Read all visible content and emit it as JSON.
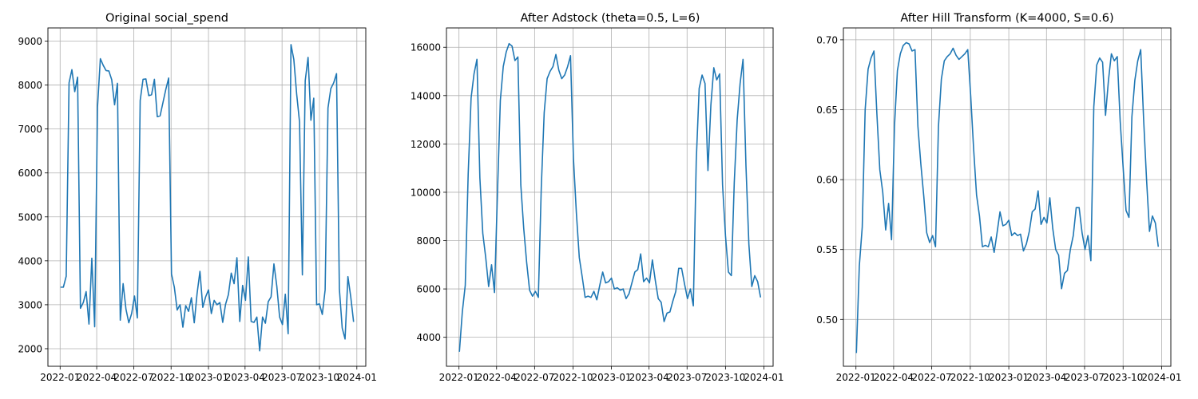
{
  "chart_data": [
    {
      "type": "line",
      "title": "Original social_spend",
      "x_ticks": [
        "2022-01",
        "2022-04",
        "2022-07",
        "2022-10",
        "2023-01",
        "2023-04",
        "2023-07",
        "2023-10",
        "2024-01"
      ],
      "y_ticks": [
        "2000",
        "3000",
        "4000",
        "5000",
        "6000",
        "7000",
        "8000",
        "9000"
      ],
      "ylim": [
        1600,
        9300
      ],
      "grid": true,
      "color": "#1f77b4",
      "series": [
        {
          "x": [
            "2022-01-02",
            "2022-01-09",
            "2022-01-16",
            "2022-01-23",
            "2022-01-30",
            "2022-02-06",
            "2022-02-13",
            "2022-02-20",
            "2022-02-27",
            "2022-03-06",
            "2022-03-13",
            "2022-03-20",
            "2022-03-27",
            "2022-04-03",
            "2022-04-10",
            "2022-04-17",
            "2022-04-24",
            "2022-05-01",
            "2022-05-08",
            "2022-05-15",
            "2022-05-22",
            "2022-05-29",
            "2022-06-05",
            "2022-06-12",
            "2022-06-19",
            "2022-06-26",
            "2022-07-03",
            "2022-07-10",
            "2022-07-17",
            "2022-07-24",
            "2022-07-31",
            "2022-08-07",
            "2022-08-14",
            "2022-08-21",
            "2022-08-28",
            "2022-09-04",
            "2022-09-11",
            "2022-09-18",
            "2022-09-25",
            "2022-10-02",
            "2022-10-09",
            "2022-10-16",
            "2022-10-23",
            "2022-10-30",
            "2022-11-06",
            "2022-11-13",
            "2022-11-20",
            "2022-11-27",
            "2022-12-04",
            "2022-12-11",
            "2022-12-18",
            "2022-12-25",
            "2023-01-01",
            "2023-01-08",
            "2023-01-15",
            "2023-01-22",
            "2023-01-29",
            "2023-02-05",
            "2023-02-12",
            "2023-02-19",
            "2023-02-26",
            "2023-03-05",
            "2023-03-12",
            "2023-03-19",
            "2023-03-26",
            "2023-04-02",
            "2023-04-09",
            "2023-04-16",
            "2023-04-23",
            "2023-04-30",
            "2023-05-07",
            "2023-05-14",
            "2023-05-21",
            "2023-05-28",
            "2023-06-04",
            "2023-06-11",
            "2023-06-18",
            "2023-06-25",
            "2023-07-02",
            "2023-07-09",
            "2023-07-16",
            "2023-07-23",
            "2023-07-30",
            "2023-08-06",
            "2023-08-13",
            "2023-08-20",
            "2023-08-27",
            "2023-09-03",
            "2023-09-10",
            "2023-09-17",
            "2023-09-24",
            "2023-10-01",
            "2023-10-08",
            "2023-10-15",
            "2023-10-22",
            "2023-10-29",
            "2023-11-05",
            "2023-11-12",
            "2023-11-19",
            "2023-11-26",
            "2023-12-03",
            "2023-12-10",
            "2023-12-17",
            "2023-12-24"
          ],
          "y": [
            3400,
            3400,
            3650,
            8050,
            8350,
            7850,
            8180,
            2920,
            3050,
            3300,
            2560,
            4060,
            2500,
            7500,
            8600,
            8450,
            8330,
            8320,
            8120,
            7550,
            8040,
            2650,
            3480,
            2900,
            2590,
            2800,
            3200,
            2700,
            7650,
            8130,
            8140,
            7760,
            7780,
            8130,
            7280,
            7300,
            7600,
            7900,
            8160,
            3700,
            3400,
            2880,
            3000,
            2490,
            2980,
            2850,
            3160,
            2590,
            3260,
            3760,
            2940,
            3180,
            3340,
            2800,
            3100,
            3000,
            3050,
            2600,
            3010,
            3230,
            3720,
            3480,
            4070,
            2620,
            3440,
            3100,
            4090,
            2620,
            2600,
            2720,
            1950,
            2720,
            2580,
            3070,
            3180,
            3930,
            3430,
            2720,
            2550,
            3240,
            2340,
            8920,
            8580,
            7790,
            7160,
            3680,
            8100,
            8630,
            7200,
            7700,
            3000,
            3020,
            2780,
            3340,
            7480,
            7920,
            8050,
            8260,
            3360,
            2470,
            2220,
            3640,
            3180,
            2610
          ]
        }
      ]
    },
    {
      "type": "line",
      "title": "After Adstock (theta=0.5, L=6)",
      "x_ticks": [
        "2022-01",
        "2022-04",
        "2022-07",
        "2022-10",
        "2023-01",
        "2023-04",
        "2023-07",
        "2023-10",
        "2024-01"
      ],
      "y_ticks": [
        "4000",
        "6000",
        "8000",
        "10000",
        "12000",
        "14000",
        "16000"
      ],
      "ylim": [
        2800,
        16800
      ],
      "grid": true,
      "color": "#1f77b4",
      "series": [
        {
          "x": [
            "2022-01-02",
            "2022-01-09",
            "2022-01-16",
            "2022-01-23",
            "2022-01-30",
            "2022-02-06",
            "2022-02-13",
            "2022-02-20",
            "2022-02-27",
            "2022-03-06",
            "2022-03-13",
            "2022-03-20",
            "2022-03-27",
            "2022-04-03",
            "2022-04-10",
            "2022-04-17",
            "2022-04-24",
            "2022-05-01",
            "2022-05-08",
            "2022-05-15",
            "2022-05-22",
            "2022-05-29",
            "2022-06-05",
            "2022-06-12",
            "2022-06-19",
            "2022-06-26",
            "2022-07-03",
            "2022-07-10",
            "2022-07-17",
            "2022-07-24",
            "2022-07-31",
            "2022-08-07",
            "2022-08-14",
            "2022-08-21",
            "2022-08-28",
            "2022-09-04",
            "2022-09-11",
            "2022-09-18",
            "2022-09-25",
            "2022-10-02",
            "2022-10-09",
            "2022-10-16",
            "2022-10-23",
            "2022-10-30",
            "2022-11-06",
            "2022-11-13",
            "2022-11-20",
            "2022-11-27",
            "2022-12-04",
            "2022-12-11",
            "2022-12-18",
            "2022-12-25",
            "2023-01-01",
            "2023-01-08",
            "2023-01-15",
            "2023-01-22",
            "2023-01-29",
            "2023-02-05",
            "2023-02-12",
            "2023-02-19",
            "2023-02-26",
            "2023-03-05",
            "2023-03-12",
            "2023-03-19",
            "2023-03-26",
            "2023-04-02",
            "2023-04-09",
            "2023-04-16",
            "2023-04-23",
            "2023-04-30",
            "2023-05-07",
            "2023-05-14",
            "2023-05-21",
            "2023-05-28",
            "2023-06-04",
            "2023-06-11",
            "2023-06-18",
            "2023-06-25",
            "2023-07-02",
            "2023-07-09",
            "2023-07-16",
            "2023-07-23",
            "2023-07-30",
            "2023-08-06",
            "2023-08-13",
            "2023-08-20",
            "2023-08-27",
            "2023-09-03",
            "2023-09-10",
            "2023-09-17",
            "2023-09-24",
            "2023-10-01",
            "2023-10-08",
            "2023-10-15",
            "2023-10-22",
            "2023-10-29",
            "2023-11-05",
            "2023-11-12",
            "2023-11-19",
            "2023-11-26",
            "2023-12-03",
            "2023-12-10",
            "2023-12-17",
            "2023-12-24"
          ],
          "y": [
            3400,
            5050,
            6150,
            10750,
            13900,
            14900,
            15500,
            10600,
            8300,
            7300,
            6100,
            7000,
            5850,
            9900,
            13800,
            15200,
            15800,
            16150,
            16050,
            15450,
            15600,
            10300,
            8500,
            7100,
            5950,
            5700,
            5900,
            5650,
            10200,
            13300,
            14700,
            15000,
            15200,
            15700,
            15050,
            14700,
            14850,
            15200,
            15650,
            11400,
            9150,
            7300,
            6500,
            5650,
            5700,
            5650,
            5900,
            5550,
            6150,
            6700,
            6250,
            6300,
            6450,
            6000,
            6050,
            5950,
            6000,
            5600,
            5800,
            6250,
            6700,
            6800,
            7450,
            6300,
            6450,
            6250,
            7200,
            6350,
            5600,
            5450,
            4650,
            5000,
            5050,
            5500,
            5900,
            6850,
            6850,
            6200,
            5600,
            6000,
            5300,
            11300,
            14300,
            14850,
            14500,
            10900,
            13600,
            15150,
            14650,
            14900,
            10300,
            8200,
            6700,
            6550,
            10400,
            13000,
            14500,
            15500,
            11100,
            7850,
            6100,
            6550,
            6300,
            5650
          ]
        }
      ]
    },
    {
      "type": "line",
      "title": "After Hill Transform (K=4000, S=0.6)",
      "x_ticks": [
        "2022-01",
        "2022-04",
        "2022-07",
        "2022-10",
        "2023-01",
        "2023-04",
        "2023-07",
        "2023-10",
        "2024-01"
      ],
      "y_ticks": [
        "0.50",
        "0.55",
        "0.60",
        "0.65",
        "0.70"
      ],
      "ylim": [
        0.4665,
        0.7085
      ],
      "grid": true,
      "color": "#1f77b4",
      "series": [
        {
          "x": [
            "2022-01-02",
            "2022-01-09",
            "2022-01-16",
            "2022-01-23",
            "2022-01-30",
            "2022-02-06",
            "2022-02-13",
            "2022-02-20",
            "2022-02-27",
            "2022-03-06",
            "2022-03-13",
            "2022-03-20",
            "2022-03-27",
            "2022-04-03",
            "2022-04-10",
            "2022-04-17",
            "2022-04-24",
            "2022-05-01",
            "2022-05-08",
            "2022-05-15",
            "2022-05-22",
            "2022-05-29",
            "2022-06-05",
            "2022-06-12",
            "2022-06-19",
            "2022-06-26",
            "2022-07-03",
            "2022-07-10",
            "2022-07-17",
            "2022-07-24",
            "2022-07-31",
            "2022-08-07",
            "2022-08-14",
            "2022-08-21",
            "2022-08-28",
            "2022-09-04",
            "2022-09-11",
            "2022-09-18",
            "2022-09-25",
            "2022-10-02",
            "2022-10-09",
            "2022-10-16",
            "2022-10-23",
            "2022-10-30",
            "2022-11-06",
            "2022-11-13",
            "2022-11-20",
            "2022-11-27",
            "2022-12-04",
            "2022-12-11",
            "2022-12-18",
            "2022-12-25",
            "2023-01-01",
            "2023-01-08",
            "2023-01-15",
            "2023-01-22",
            "2023-01-29",
            "2023-02-05",
            "2023-02-12",
            "2023-02-19",
            "2023-02-26",
            "2023-03-05",
            "2023-03-12",
            "2023-03-19",
            "2023-03-26",
            "2023-04-02",
            "2023-04-09",
            "2023-04-16",
            "2023-04-23",
            "2023-04-30",
            "2023-05-07",
            "2023-05-14",
            "2023-05-21",
            "2023-05-28",
            "2023-06-04",
            "2023-06-11",
            "2023-06-18",
            "2023-06-25",
            "2023-07-02",
            "2023-07-09",
            "2023-07-16",
            "2023-07-23",
            "2023-07-30",
            "2023-08-06",
            "2023-08-13",
            "2023-08-20",
            "2023-08-27",
            "2023-09-03",
            "2023-09-10",
            "2023-09-17",
            "2023-09-24",
            "2023-10-01",
            "2023-10-08",
            "2023-10-15",
            "2023-10-22",
            "2023-10-29",
            "2023-11-05",
            "2023-11-12",
            "2023-11-19",
            "2023-11-26",
            "2023-12-03",
            "2023-12-10",
            "2023-12-17",
            "2023-12-24"
          ],
          "y": [
            0.476,
            0.538,
            0.566,
            0.65,
            0.679,
            0.687,
            0.692,
            0.647,
            0.607,
            0.591,
            0.564,
            0.583,
            0.557,
            0.638,
            0.678,
            0.69,
            0.696,
            0.698,
            0.697,
            0.692,
            0.693,
            0.638,
            0.611,
            0.588,
            0.562,
            0.555,
            0.56,
            0.552,
            0.638,
            0.672,
            0.685,
            0.688,
            0.69,
            0.694,
            0.689,
            0.686,
            0.688,
            0.69,
            0.693,
            0.66,
            0.622,
            0.589,
            0.574,
            0.552,
            0.553,
            0.552,
            0.559,
            0.548,
            0.562,
            0.577,
            0.567,
            0.568,
            0.571,
            0.56,
            0.562,
            0.56,
            0.561,
            0.549,
            0.554,
            0.563,
            0.577,
            0.579,
            0.592,
            0.568,
            0.573,
            0.569,
            0.587,
            0.565,
            0.55,
            0.546,
            0.522,
            0.533,
            0.535,
            0.55,
            0.56,
            0.58,
            0.58,
            0.562,
            0.55,
            0.56,
            0.542,
            0.652,
            0.682,
            0.687,
            0.684,
            0.646,
            0.671,
            0.69,
            0.685,
            0.688,
            0.642,
            0.609,
            0.578,
            0.573,
            0.645,
            0.671,
            0.685,
            0.693,
            0.643,
            0.6,
            0.563,
            0.574,
            0.569,
            0.552
          ]
        }
      ]
    }
  ]
}
